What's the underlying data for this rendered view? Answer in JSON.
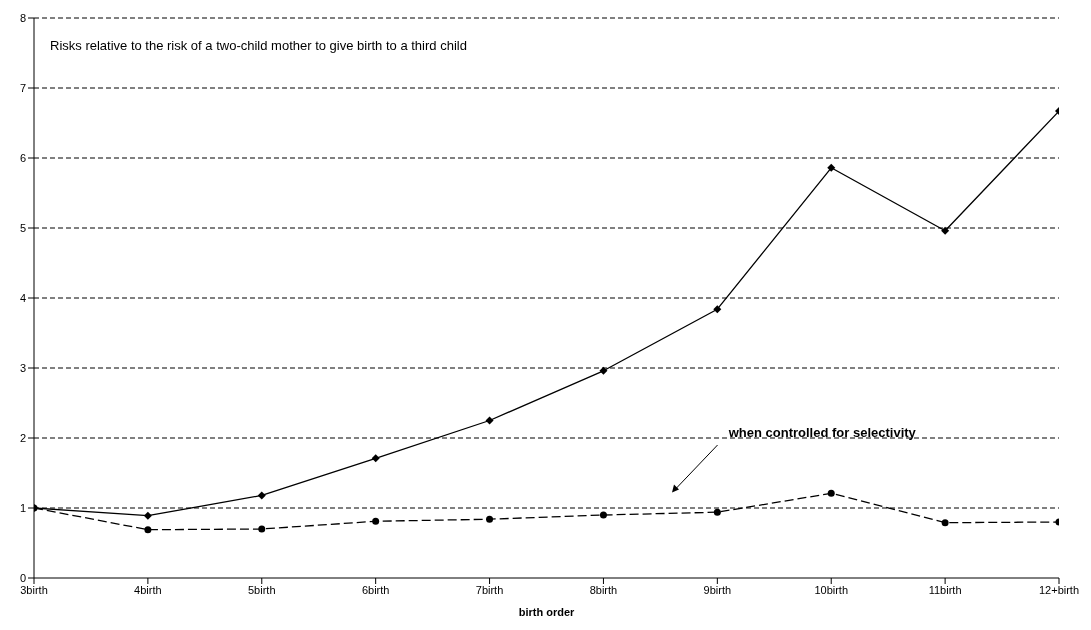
{
  "chart_data": {
    "type": "line",
    "xlabel": "birth order",
    "categories": [
      "3birth",
      "4birth",
      "5birth",
      "6birth",
      "7birth",
      "8birth",
      "9birth",
      "10birth",
      "11birth",
      "12+birth"
    ],
    "series": [
      {
        "color": "#000000",
        "marker": "diamond",
        "line_style": "solid",
        "values": [
          1.0,
          0.89,
          1.18,
          1.71,
          2.25,
          2.96,
          3.84,
          5.86,
          4.96,
          6.67
        ]
      },
      {
        "color": "#000000",
        "marker": "circle",
        "line_style": "dashed",
        "values": [
          1.0,
          0.69,
          0.7,
          0.81,
          0.84,
          0.9,
          0.94,
          1.21,
          0.79,
          0.8
        ]
      }
    ],
    "ylim": [
      0,
      8
    ],
    "yticks": [
      0,
      1,
      2,
      3,
      4,
      5,
      6,
      7,
      8
    ],
    "grid": "y",
    "annotations": [
      "Risks relative to the risk of a two-child mother to give birth to a third child",
      "when controlled for selectivity"
    ]
  }
}
